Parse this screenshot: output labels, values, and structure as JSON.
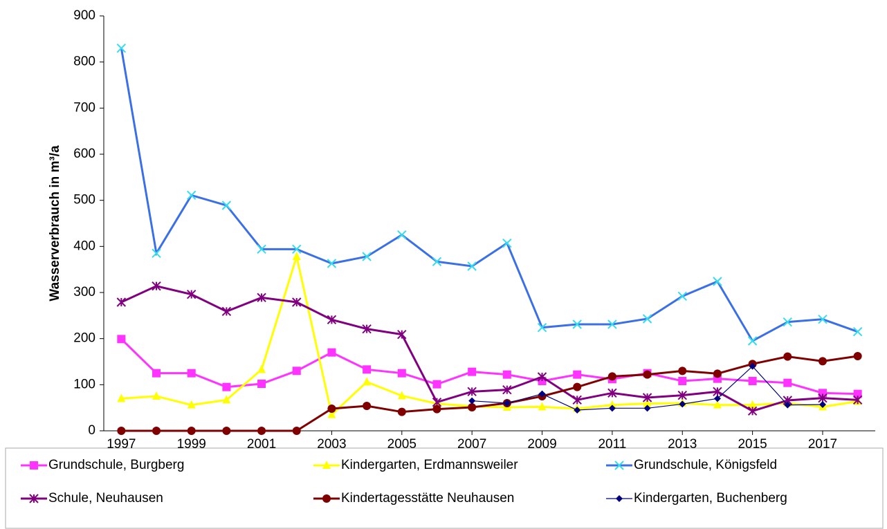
{
  "chart_data": {
    "type": "line",
    "y_label": "Wasserverbrauch in m³/a",
    "x": [
      1997,
      1998,
      1999,
      2000,
      2001,
      2002,
      2003,
      2004,
      2005,
      2006,
      2007,
      2008,
      2009,
      2010,
      2011,
      2012,
      2013,
      2014,
      2015,
      2016,
      2017,
      2018
    ],
    "xlim": [
      1996.5,
      2018.5
    ],
    "xticks": [
      1997,
      1999,
      2001,
      2003,
      2005,
      2007,
      2009,
      2011,
      2013,
      2015,
      2017
    ],
    "ylim": [
      0,
      900
    ],
    "yticks": [
      0,
      100,
      200,
      300,
      400,
      500,
      600,
      700,
      800,
      900
    ],
    "series": [
      {
        "name": "Grundschule, Burgberg",
        "color": "#ff33ff",
        "marker": "square",
        "marker_color": "#ff33ff",
        "values": [
          199,
          125,
          125,
          95,
          102,
          130,
          170,
          133,
          125,
          101,
          128,
          122,
          108,
          122,
          112,
          125,
          108,
          113,
          108,
          104,
          82,
          80
        ]
      },
      {
        "name": "Kindergarten, Erdmannsweiler",
        "color": "#ffff00",
        "marker": "triangle",
        "marker_color": "#ffff00",
        "values": [
          70,
          75,
          56,
          67,
          133,
          378,
          35,
          106,
          76,
          59,
          53,
          51,
          52,
          48,
          56,
          59,
          60,
          56,
          56,
          60,
          52,
          64
        ]
      },
      {
        "name": "Grundschule, Königsfeld",
        "color": "#3b6fe8",
        "marker": "x",
        "marker_color": "#33ddee",
        "values": [
          830,
          385,
          511,
          489,
          394,
          394,
          363,
          378,
          425,
          367,
          357,
          407,
          224,
          231,
          231,
          243,
          292,
          324,
          195,
          236,
          242,
          215
        ]
      },
      {
        "name": "Schule, Neuhausen",
        "color": "#800080",
        "marker": "asterisk",
        "marker_color": "#800080",
        "values": [
          279,
          314,
          296,
          259,
          289,
          279,
          241,
          221,
          209,
          62,
          85,
          89,
          117,
          67,
          82,
          72,
          77,
          85,
          43,
          66,
          71,
          67
        ]
      },
      {
        "name": "Kindertagesstätte Neuhausen",
        "color": "#800000",
        "marker": "circle",
        "marker_color": "#800000",
        "values": [
          0,
          0,
          0,
          0,
          0,
          0,
          48,
          54,
          41,
          47,
          51,
          60,
          75,
          95,
          118,
          122,
          130,
          124,
          145,
          161,
          151,
          162
        ]
      },
      {
        "name": "Kindergarten, Buchenberg",
        "color": "#000080",
        "marker": "diamond",
        "marker_color": "#000080",
        "values": [
          null,
          null,
          null,
          null,
          null,
          null,
          null,
          null,
          null,
          null,
          65,
          60,
          80,
          45,
          49,
          49,
          58,
          70,
          140,
          56,
          57,
          null
        ]
      }
    ]
  }
}
